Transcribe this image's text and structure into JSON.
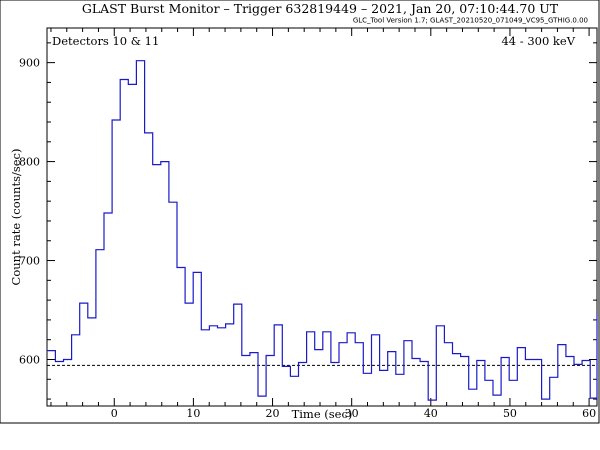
{
  "header": {
    "title": "GLAST Burst Monitor  –  Trigger 632819449  –  2021, Jan 20, 07:10:44.70 UT",
    "version": "GLC_Tool Version 1.7; GLAST_20210520_071049_VC95_GTHIG.0.00"
  },
  "chart_data": {
    "type": "line",
    "drawstyle": "steps-post",
    "title": "GLAST Burst Monitor  –  Trigger 632819449  –  2021, Jan 20, 07:10:44.70 UT",
    "xlabel": "Time (sec)",
    "ylabel": "Count rate (counts/sec)",
    "annotations": {
      "detectors": "Detectors 10 & 11",
      "energy": "44 - 300 keV"
    },
    "xlim": [
      -8.5,
      61
    ],
    "ylim": [
      553,
      935
    ],
    "x_ticks": [
      0,
      10,
      20,
      30,
      40,
      50,
      60
    ],
    "y_ticks": [
      600,
      700,
      800,
      900
    ],
    "background_level": 594,
    "color": "#1a1ac8",
    "bin_width": 1.024,
    "series": [
      {
        "bin_edges": [
          -8.5,
          -7.437,
          -6.413,
          -5.389,
          -4.365,
          -3.341,
          -2.317,
          -1.293,
          -0.269,
          0.755,
          1.779,
          2.803,
          3.827,
          4.851,
          5.875,
          6.899,
          7.923,
          8.947,
          9.971,
          10.995,
          12.019,
          13.043,
          14.067,
          15.091,
          16.115,
          17.139,
          18.163,
          19.187,
          20.211,
          21.235,
          22.259,
          23.283,
          24.307,
          25.331,
          26.355,
          27.379,
          28.403,
          29.427,
          30.451,
          31.475,
          32.499,
          33.523,
          34.547,
          35.571,
          36.595,
          37.619,
          38.643,
          39.667,
          40.691,
          41.715,
          42.739,
          43.763,
          44.787,
          45.811,
          46.835,
          47.859,
          48.883,
          49.907,
          50.931,
          51.955,
          52.979,
          54.003,
          55.027,
          56.051,
          57.075,
          58.099,
          59.123,
          60.147,
          61.0
        ],
        "values": [
          609,
          598,
          600,
          625,
          657,
          642,
          711,
          748,
          842,
          883,
          878,
          902,
          829,
          797,
          800,
          759,
          693,
          657,
          688,
          630,
          634,
          632,
          636,
          656,
          604,
          607,
          563,
          604,
          635,
          593,
          583,
          597,
          628,
          610,
          628,
          597,
          617,
          627,
          617,
          586,
          625,
          589,
          608,
          585,
          619,
          601,
          598,
          559,
          634,
          617,
          606,
          603,
          570,
          599,
          579,
          564,
          602,
          579,
          612,
          600,
          600,
          560,
          582,
          615,
          603,
          595,
          599,
          561,
          645
        ]
      }
    ]
  }
}
